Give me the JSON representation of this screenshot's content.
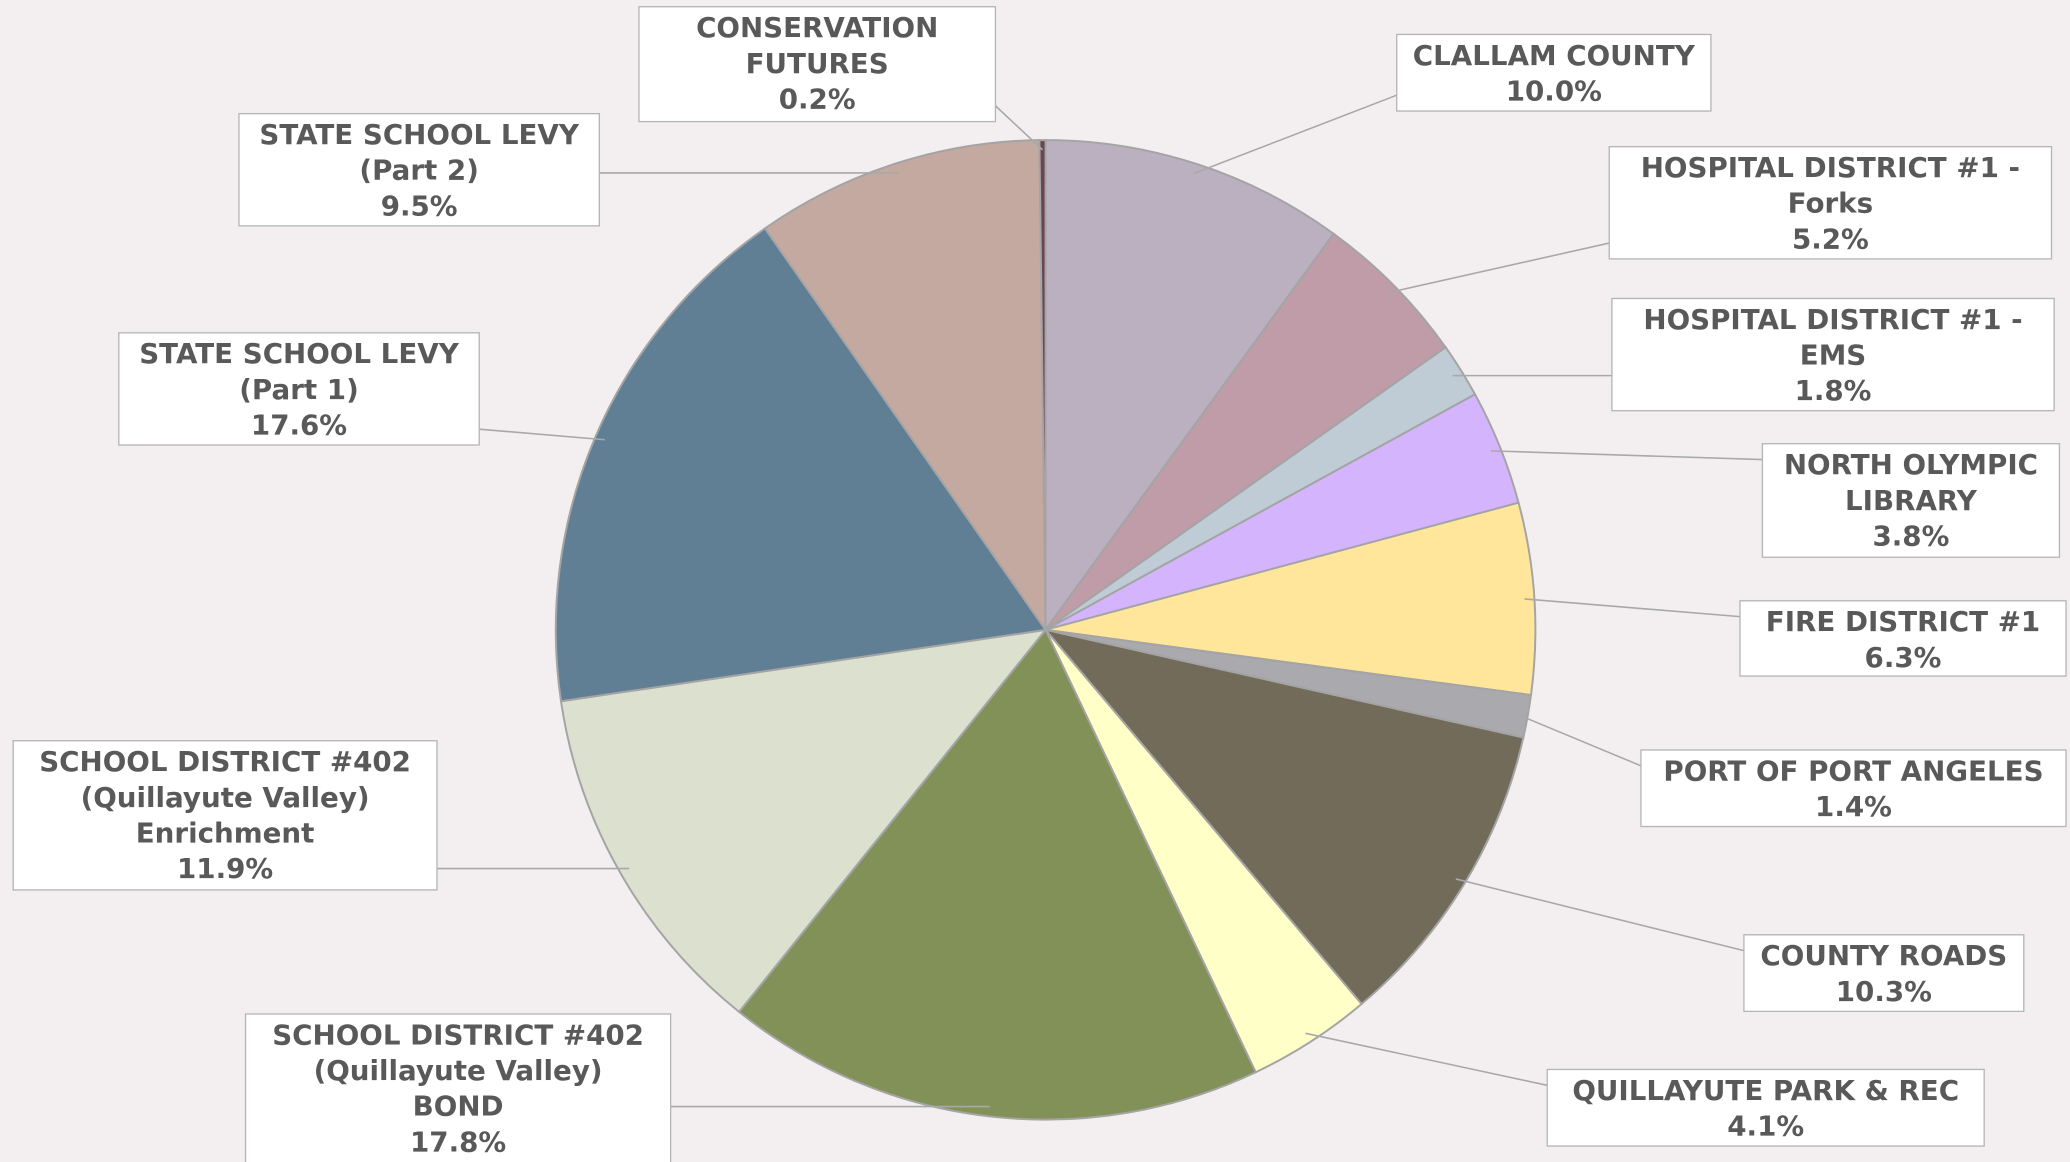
{
  "chart_data": {
    "type": "pie",
    "categories": [
      [
        "CLALLAM COUNTY"
      ],
      [
        "HOSPITAL DISTRICT #1 -",
        "Forks"
      ],
      [
        "HOSPITAL DISTRICT #1 -",
        "EMS"
      ],
      [
        "NORTH OLYMPIC",
        "LIBRARY"
      ],
      [
        "FIRE DISTRICT #1"
      ],
      [
        "PORT OF PORT ANGELES"
      ],
      [
        "COUNTY ROADS"
      ],
      [
        "QUILLAYUTE PARK & REC"
      ],
      [
        "SCHOOL DISTRICT #402",
        "(Quillayute Valley)",
        "BOND"
      ],
      [
        "SCHOOL DISTRICT #402",
        "(Quillayute Valley)",
        "Enrichment"
      ],
      [
        "STATE SCHOOL LEVY",
        "(Part 1)"
      ],
      [
        "STATE SCHOOL LEVY",
        "(Part 2)"
      ],
      [
        "CONSERVATION",
        "FUTURES"
      ]
    ],
    "values": [
      10.0,
      5.2,
      1.8,
      3.8,
      6.3,
      1.4,
      10.3,
      4.1,
      17.8,
      11.9,
      17.6,
      9.5,
      0.2
    ],
    "value_labels": [
      "10.0%",
      "5.2%",
      "1.8%",
      "3.8%",
      "6.3%",
      "1.4%",
      "10.3%",
      "4.1%",
      "17.8%",
      "11.9%",
      "17.6%",
      "9.5%",
      "0.2%"
    ],
    "colors": [
      "#bab0bf",
      "#bf9ca8",
      "#bfcbd5",
      "#d4b5fd",
      "#ffe69b",
      "#a9a9ae",
      "#736b5a",
      "#ffffc8",
      "#819157",
      "#dbe0cf",
      "#617f94",
      "#c4a9a0",
      "#6a4553"
    ]
  }
}
